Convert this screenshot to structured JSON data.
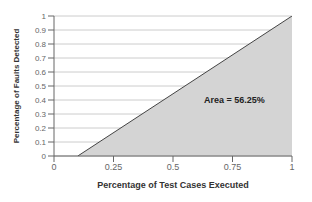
{
  "chart_data": {
    "type": "area",
    "title": "",
    "xlabel": "Percentage of Test Cases Executed",
    "ylabel": "Percentage of Faults Detected",
    "x": [
      0.1,
      1.0
    ],
    "values": [
      0.0,
      1.0
    ],
    "colors": [
      "#d4d4d4",
      "#444444"
    ],
    "xlim": [
      0,
      1
    ],
    "ylim": [
      0,
      1
    ],
    "xticks": [
      0,
      0.25,
      0.5,
      0.75,
      1
    ],
    "yticks": [
      0,
      0.1,
      0.2,
      0.3,
      0.4,
      0.5,
      0.6,
      0.7,
      0.8,
      0.9,
      1
    ],
    "grid": true,
    "annotations": [
      {
        "text": "Area = 56.25%",
        "x": 0.63,
        "y": 0.38
      }
    ]
  }
}
